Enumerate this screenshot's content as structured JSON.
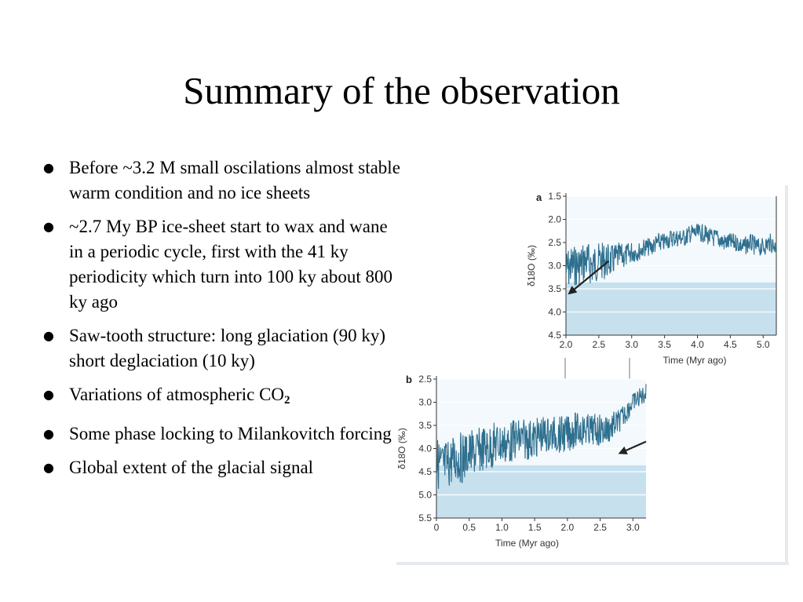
{
  "slide": {
    "title": "Summary of the observation",
    "bullets": [
      {
        "text": "Before ~3.2 M small oscilations almost stable warm condition and no ice sheets"
      },
      {
        "text": "~2.7 My BP ice-sheet start to wax and wane in a periodic cycle, first with the 41 ky periodicity which turn into 100 ky about 800 ky ago"
      },
      {
        "text": "Saw-tooth structure: long glaciation (90 ky) short deglaciation (10 ky)"
      },
      {
        "text": "Variations of atmospheric CO",
        "subscript": "2"
      },
      {
        "text": "Some phase locking to Milankovitch forcing"
      },
      {
        "text": "Global extent of the glacial signal"
      }
    ]
  },
  "colors": {
    "series": "#2e6f8e",
    "band": "#c6e0ee",
    "band_light": "#dbeef7",
    "arrow": "#222222"
  },
  "chart_data": [
    {
      "type": "line",
      "panel_label": "a",
      "xlabel": "Time (Myr ago)",
      "ylabel": "δ18O (‰)",
      "xlim": [
        2.0,
        5.2
      ],
      "ylim": [
        1.5,
        4.5
      ],
      "y_inverted": true,
      "xticks": [
        2.0,
        2.5,
        3.0,
        3.5,
        4.0,
        4.5,
        5.0
      ],
      "yticks": [
        1.5,
        2.0,
        2.5,
        3.0,
        3.5,
        4.0,
        4.5
      ],
      "series": [
        {
          "x": [
            2.0,
            2.1,
            2.2,
            2.3,
            2.4,
            2.5,
            2.6,
            2.7,
            2.8,
            2.9,
            3.0,
            3.1,
            3.2,
            3.3,
            3.4,
            3.5,
            3.6,
            3.7,
            3.8,
            3.9,
            4.0,
            4.1,
            4.2,
            4.3,
            4.4,
            4.5,
            4.6,
            4.7,
            4.8,
            4.9,
            5.0,
            5.1,
            5.2
          ],
          "y": [
            3.1,
            3.0,
            3.0,
            2.9,
            3.0,
            2.9,
            2.9,
            2.9,
            2.8,
            2.8,
            2.7,
            2.7,
            2.6,
            2.6,
            2.5,
            2.5,
            2.4,
            2.4,
            2.4,
            2.3,
            2.3,
            2.3,
            2.4,
            2.4,
            2.5,
            2.5,
            2.5,
            2.6,
            2.5,
            2.6,
            2.6,
            2.5,
            2.6
          ],
          "amplitude": [
            0.45,
            0.45,
            0.45,
            0.45,
            0.45,
            0.4,
            0.4,
            0.35,
            0.3,
            0.25,
            0.25,
            0.2,
            0.2,
            0.2,
            0.2,
            0.2,
            0.2,
            0.2,
            0.2,
            0.2,
            0.2,
            0.2,
            0.2,
            0.2,
            0.2,
            0.2,
            0.2,
            0.2,
            0.2,
            0.2,
            0.2,
            0.2,
            0.2
          ]
        }
      ],
      "arrow": {
        "from": [
          2.65,
          2.9
        ],
        "to": [
          2.05,
          3.6
        ]
      }
    },
    {
      "type": "line",
      "panel_label": "b",
      "xlabel": "Time (Myr ago)",
      "ylabel": "δ18O (‰)",
      "xlim": [
        0,
        3.2
      ],
      "ylim": [
        2.5,
        5.5
      ],
      "y_inverted": true,
      "xticks": [
        0,
        0.5,
        1.0,
        1.5,
        2.0,
        2.5,
        3.0
      ],
      "yticks": [
        2.5,
        3.0,
        3.5,
        4.0,
        4.5,
        5.0,
        5.5
      ],
      "series": [
        {
          "x": [
            0,
            0.1,
            0.2,
            0.3,
            0.4,
            0.5,
            0.6,
            0.7,
            0.8,
            0.9,
            1.0,
            1.1,
            1.2,
            1.3,
            1.4,
            1.5,
            1.6,
            1.7,
            1.8,
            1.9,
            2.0,
            2.1,
            2.2,
            2.3,
            2.4,
            2.5,
            2.6,
            2.7,
            2.8,
            2.9,
            3.0,
            3.1,
            3.2
          ],
          "y": [
            4.3,
            4.4,
            4.3,
            4.2,
            4.2,
            4.1,
            4.1,
            4.0,
            4.0,
            3.9,
            3.9,
            3.9,
            3.8,
            3.8,
            3.8,
            3.8,
            3.7,
            3.7,
            3.7,
            3.7,
            3.7,
            3.6,
            3.6,
            3.6,
            3.6,
            3.6,
            3.6,
            3.5,
            3.4,
            3.2,
            3.0,
            2.9,
            2.8
          ],
          "amplitude": [
            0.55,
            0.55,
            0.55,
            0.55,
            0.55,
            0.5,
            0.5,
            0.5,
            0.5,
            0.5,
            0.45,
            0.45,
            0.45,
            0.45,
            0.45,
            0.45,
            0.4,
            0.4,
            0.4,
            0.4,
            0.4,
            0.4,
            0.35,
            0.35,
            0.35,
            0.35,
            0.35,
            0.3,
            0.25,
            0.25,
            0.2,
            0.2,
            0.2
          ]
        }
      ],
      "arrow": {
        "from": [
          3.2,
          3.85
        ],
        "to": [
          2.8,
          4.1
        ]
      }
    }
  ]
}
